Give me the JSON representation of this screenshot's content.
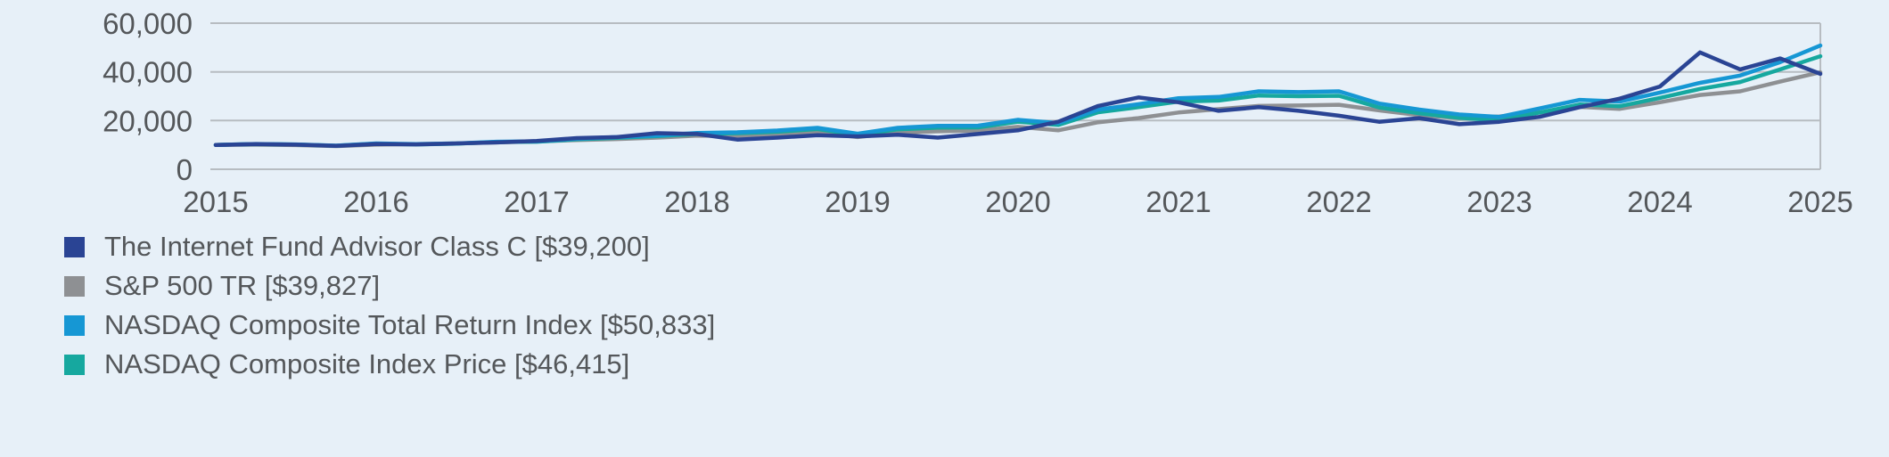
{
  "colors": {
    "background": "#e7f0f8",
    "grid": "#b7bcc1",
    "text": "#54575a"
  },
  "chart_data": {
    "type": "line",
    "xlabel": "",
    "ylabel": "",
    "xlim": [
      2015,
      2025
    ],
    "ylim": [
      0,
      60000
    ],
    "grid": "horizontal",
    "legend_position": "bottom-left",
    "xticks": [
      "2015",
      "2016",
      "2017",
      "2018",
      "2019",
      "2020",
      "2021",
      "2022",
      "2023",
      "2024",
      "2025"
    ],
    "yticks": [
      {
        "value": 0,
        "label": "0"
      },
      {
        "value": 20000,
        "label": "20,000"
      },
      {
        "value": 40000,
        "label": "40,000"
      },
      {
        "value": 60000,
        "label": "60,000"
      }
    ],
    "x": [
      2015.0,
      2015.25,
      2015.5,
      2015.75,
      2016.0,
      2016.25,
      2016.5,
      2016.75,
      2017.0,
      2017.25,
      2017.5,
      2017.75,
      2018.0,
      2018.25,
      2018.5,
      2018.75,
      2019.0,
      2019.25,
      2019.5,
      2019.75,
      2020.0,
      2020.25,
      2020.5,
      2020.75,
      2021.0,
      2021.25,
      2021.5,
      2021.75,
      2022.0,
      2022.25,
      2022.5,
      2022.75,
      2023.0,
      2023.25,
      2023.5,
      2023.75,
      2024.0,
      2024.25,
      2024.5,
      2024.75,
      2025.0
    ],
    "series": [
      {
        "name": "internet-fund-advisor-class-c",
        "label": "The Internet Fund Advisor Class C [$39,200]",
        "final_value": 39200,
        "color": "#2a4494",
        "z": 4,
        "values": [
          10000,
          10300,
          10100,
          9600,
          10400,
          10200,
          10600,
          11000,
          11600,
          12800,
          13200,
          14800,
          14500,
          12200,
          13000,
          14000,
          13500,
          14200,
          13000,
          14500,
          16000,
          19500,
          26000,
          29500,
          27500,
          24000,
          25500,
          24000,
          22000,
          19500,
          21000,
          18500,
          19500,
          21500,
          25500,
          29000,
          34000,
          48000,
          41000,
          45500,
          39200
        ]
      },
      {
        "name": "sp500-tr",
        "label": "S&P 500 TR [$39,827]",
        "final_value": 39827,
        "color": "#8e9093",
        "z": 1,
        "values": [
          10000,
          10100,
          9900,
          9500,
          10100,
          10300,
          10600,
          11000,
          11400,
          12000,
          12400,
          13000,
          13800,
          13600,
          14000,
          15100,
          13200,
          15000,
          15600,
          15900,
          17400,
          16000,
          19300,
          21000,
          23300,
          24700,
          26000,
          26200,
          26500,
          24200,
          22200,
          21000,
          21700,
          23300,
          25600,
          24800,
          27500,
          30500,
          32000,
          36000,
          39827
        ]
      },
      {
        "name": "nasdaq-composite-total-return-index",
        "label": "NASDAQ Composite Total Return Index [$50,833]",
        "final_value": 50833,
        "color": "#1697d4",
        "z": 3,
        "values": [
          10000,
          10400,
          10200,
          9700,
          10600,
          10300,
          10600,
          11300,
          11500,
          12500,
          13200,
          13900,
          14900,
          15200,
          15900,
          17000,
          14600,
          17000,
          17800,
          17900,
          20300,
          19000,
          24500,
          26700,
          29200,
          29700,
          32000,
          31700,
          32000,
          27000,
          24500,
          22500,
          21500,
          25000,
          28500,
          27800,
          31500,
          35500,
          38500,
          44000,
          50833
        ]
      },
      {
        "name": "nasdaq-composite-index-price",
        "label": "NASDAQ Composite Index Price [$46,415]",
        "final_value": 46415,
        "color": "#16a89f",
        "z": 2,
        "values": [
          10000,
          10350,
          10150,
          9650,
          10500,
          10200,
          10500,
          11200,
          11300,
          12300,
          12900,
          13600,
          14500,
          14800,
          15400,
          16500,
          14100,
          16400,
          17100,
          17200,
          19500,
          18200,
          23400,
          25500,
          27800,
          28200,
          30300,
          30000,
          30200,
          25400,
          23000,
          21100,
          20100,
          23300,
          26600,
          25900,
          29300,
          33000,
          35800,
          41000,
          46415
        ]
      }
    ]
  }
}
